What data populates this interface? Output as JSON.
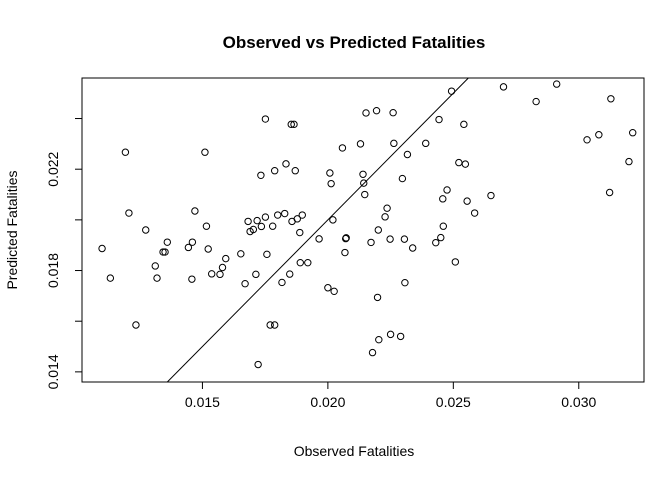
{
  "chart_data": {
    "type": "scatter",
    "title": "Observed vs Predicted Fatalities",
    "xlabel": "Observed Fatalities",
    "ylabel": "Predicted Fatalities",
    "xlim": [
      0.0102,
      0.0326
    ],
    "ylim": [
      0.0136,
      0.0256
    ],
    "xticks": [
      0.015,
      0.02,
      0.025,
      0.03
    ],
    "xtick_labels": [
      "0.015",
      "0.020",
      "0.025",
      "0.030"
    ],
    "yticks": [
      0.014,
      0.018,
      0.022
    ],
    "ytick_labels": [
      "0.014",
      "0.018",
      "0.022"
    ],
    "minor_yticks": [
      0.016,
      0.02,
      0.024
    ],
    "grid": false,
    "reference_line": {
      "type": "identity",
      "slope": 1,
      "intercept": 0
    },
    "points": [
      {
        "x": 0.011,
        "y": 0.01887
      },
      {
        "x": 0.01133,
        "y": 0.0177
      },
      {
        "x": 0.01193,
        "y": 0.02267
      },
      {
        "x": 0.01207,
        "y": 0.02027
      },
      {
        "x": 0.01235,
        "y": 0.01585
      },
      {
        "x": 0.01274,
        "y": 0.0196
      },
      {
        "x": 0.01312,
        "y": 0.01818
      },
      {
        "x": 0.01319,
        "y": 0.0177
      },
      {
        "x": 0.01343,
        "y": 0.01873
      },
      {
        "x": 0.01351,
        "y": 0.01873
      },
      {
        "x": 0.0136,
        "y": 0.01912
      },
      {
        "x": 0.01444,
        "y": 0.01891
      },
      {
        "x": 0.0146,
        "y": 0.01912
      },
      {
        "x": 0.01458,
        "y": 0.01766
      },
      {
        "x": 0.0147,
        "y": 0.02035
      },
      {
        "x": 0.0151,
        "y": 0.02267
      },
      {
        "x": 0.01516,
        "y": 0.01975
      },
      {
        "x": 0.01523,
        "y": 0.01885
      },
      {
        "x": 0.01537,
        "y": 0.01787
      },
      {
        "x": 0.0157,
        "y": 0.01785
      },
      {
        "x": 0.0158,
        "y": 0.01812
      },
      {
        "x": 0.01593,
        "y": 0.01847
      },
      {
        "x": 0.01653,
        "y": 0.01866
      },
      {
        "x": 0.0167,
        "y": 0.01748
      },
      {
        "x": 0.01682,
        "y": 0.01994
      },
      {
        "x": 0.0169,
        "y": 0.01954
      },
      {
        "x": 0.01703,
        "y": 0.01962
      },
      {
        "x": 0.01713,
        "y": 0.01785
      },
      {
        "x": 0.01718,
        "y": 0.01997
      },
      {
        "x": 0.01722,
        "y": 0.01429
      },
      {
        "x": 0.01733,
        "y": 0.02176
      },
      {
        "x": 0.01735,
        "y": 0.01974
      },
      {
        "x": 0.01751,
        "y": 0.02011
      },
      {
        "x": 0.01751,
        "y": 0.02398
      },
      {
        "x": 0.01757,
        "y": 0.01864
      },
      {
        "x": 0.0177,
        "y": 0.01585
      },
      {
        "x": 0.0178,
        "y": 0.01975
      },
      {
        "x": 0.01788,
        "y": 0.02194
      },
      {
        "x": 0.01788,
        "y": 0.01585
      },
      {
        "x": 0.018,
        "y": 0.02019
      },
      {
        "x": 0.01817,
        "y": 0.01753
      },
      {
        "x": 0.01828,
        "y": 0.02025
      },
      {
        "x": 0.01833,
        "y": 0.02221
      },
      {
        "x": 0.01848,
        "y": 0.01786
      },
      {
        "x": 0.01854,
        "y": 0.02377
      },
      {
        "x": 0.01857,
        "y": 0.01994
      },
      {
        "x": 0.01865,
        "y": 0.02377
      },
      {
        "x": 0.0187,
        "y": 0.02194
      },
      {
        "x": 0.01878,
        "y": 0.02004
      },
      {
        "x": 0.01888,
        "y": 0.0195
      },
      {
        "x": 0.0189,
        "y": 0.01831
      },
      {
        "x": 0.01898,
        "y": 0.02019
      },
      {
        "x": 0.0192,
        "y": 0.01831
      },
      {
        "x": 0.01965,
        "y": 0.01925
      },
      {
        "x": 0.02,
        "y": 0.01732
      },
      {
        "x": 0.02008,
        "y": 0.02185
      },
      {
        "x": 0.02013,
        "y": 0.02143
      },
      {
        "x": 0.0202,
        "y": 0.02
      },
      {
        "x": 0.02025,
        "y": 0.01718
      },
      {
        "x": 0.02058,
        "y": 0.02284
      },
      {
        "x": 0.02068,
        "y": 0.01871
      },
      {
        "x": 0.02071,
        "y": 0.01926
      },
      {
        "x": 0.02073,
        "y": 0.01929
      },
      {
        "x": 0.0213,
        "y": 0.023
      },
      {
        "x": 0.0214,
        "y": 0.0218
      },
      {
        "x": 0.02143,
        "y": 0.02145
      },
      {
        "x": 0.02147,
        "y": 0.021
      },
      {
        "x": 0.02152,
        "y": 0.02422
      },
      {
        "x": 0.02172,
        "y": 0.01911
      },
      {
        "x": 0.02178,
        "y": 0.01476
      },
      {
        "x": 0.02194,
        "y": 0.02431
      },
      {
        "x": 0.02198,
        "y": 0.01694
      },
      {
        "x": 0.02201,
        "y": 0.0196
      },
      {
        "x": 0.02203,
        "y": 0.01527
      },
      {
        "x": 0.02228,
        "y": 0.02012
      },
      {
        "x": 0.02236,
        "y": 0.02046
      },
      {
        "x": 0.02248,
        "y": 0.01924
      },
      {
        "x": 0.0225,
        "y": 0.01548
      },
      {
        "x": 0.0226,
        "y": 0.02423
      },
      {
        "x": 0.02263,
        "y": 0.02302
      },
      {
        "x": 0.0229,
        "y": 0.0154
      },
      {
        "x": 0.02297,
        "y": 0.02163
      },
      {
        "x": 0.02305,
        "y": 0.01924
      },
      {
        "x": 0.02307,
        "y": 0.01752
      },
      {
        "x": 0.02317,
        "y": 0.02258
      },
      {
        "x": 0.02338,
        "y": 0.01889
      },
      {
        "x": 0.0239,
        "y": 0.02302
      },
      {
        "x": 0.0243,
        "y": 0.0191
      },
      {
        "x": 0.02443,
        "y": 0.02396
      },
      {
        "x": 0.0245,
        "y": 0.0193
      },
      {
        "x": 0.02458,
        "y": 0.02083
      },
      {
        "x": 0.0246,
        "y": 0.01975
      },
      {
        "x": 0.02475,
        "y": 0.02118
      },
      {
        "x": 0.02493,
        "y": 0.02508
      },
      {
        "x": 0.02508,
        "y": 0.01834
      },
      {
        "x": 0.02522,
        "y": 0.02226
      },
      {
        "x": 0.02542,
        "y": 0.02377
      },
      {
        "x": 0.02548,
        "y": 0.0222
      },
      {
        "x": 0.02555,
        "y": 0.02074
      },
      {
        "x": 0.02585,
        "y": 0.02027
      },
      {
        "x": 0.0265,
        "y": 0.02096
      },
      {
        "x": 0.027,
        "y": 0.02525
      },
      {
        "x": 0.0283,
        "y": 0.02467
      },
      {
        "x": 0.02912,
        "y": 0.02536
      },
      {
        "x": 0.03033,
        "y": 0.02316
      },
      {
        "x": 0.0308,
        "y": 0.02336
      },
      {
        "x": 0.03123,
        "y": 0.02108
      },
      {
        "x": 0.03128,
        "y": 0.02478
      },
      {
        "x": 0.032,
        "y": 0.0223
      },
      {
        "x": 0.03215,
        "y": 0.02344
      }
    ]
  }
}
